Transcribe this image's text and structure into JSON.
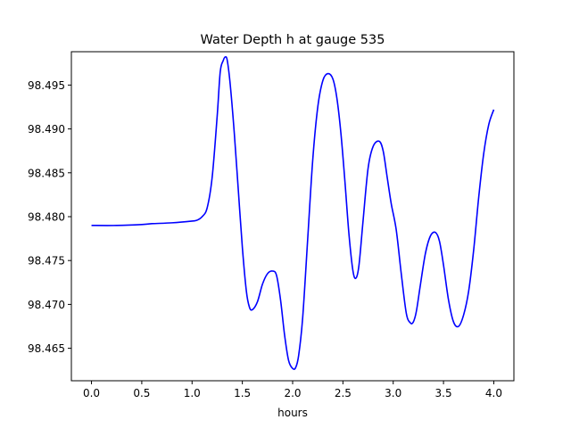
{
  "chart_data": {
    "type": "line",
    "title": "Water Depth h at gauge 535",
    "xlabel": "hours",
    "ylabel": "",
    "xlim": [
      -0.2,
      4.2
    ],
    "ylim": [
      98.4613,
      98.4988
    ],
    "xticks": [
      "0.0",
      "0.5",
      "1.0",
      "1.5",
      "2.0",
      "2.5",
      "3.0",
      "3.5",
      "4.0"
    ],
    "yticks": [
      "98.465",
      "98.470",
      "98.475",
      "98.480",
      "98.485",
      "98.490",
      "98.495"
    ],
    "grid": false,
    "series": [
      {
        "color": "#0000ff",
        "x": [
          0.0,
          0.25,
          0.5,
          0.6,
          0.8,
          1.0,
          1.05,
          1.1,
          1.15,
          1.2,
          1.25,
          1.28,
          1.31,
          1.33,
          1.35,
          1.38,
          1.42,
          1.46,
          1.5,
          1.54,
          1.57,
          1.6,
          1.65,
          1.7,
          1.75,
          1.8,
          1.84,
          1.88,
          1.92,
          1.96,
          2.0,
          2.03,
          2.06,
          2.1,
          2.15,
          2.2,
          2.25,
          2.3,
          2.35,
          2.4,
          2.44,
          2.48,
          2.52,
          2.56,
          2.6,
          2.63,
          2.66,
          2.7,
          2.75,
          2.8,
          2.86,
          2.9,
          2.94,
          2.98,
          3.03,
          3.08,
          3.13,
          3.17,
          3.2,
          3.23,
          3.27,
          3.32,
          3.37,
          3.42,
          3.46,
          3.5,
          3.55,
          3.6,
          3.65,
          3.7,
          3.75,
          3.8,
          3.85,
          3.9,
          3.95,
          4.0
        ],
        "y": [
          98.479,
          98.479,
          98.4791,
          98.4792,
          98.4793,
          98.4795,
          98.4796,
          98.48,
          98.481,
          98.4845,
          98.4915,
          98.4965,
          98.4978,
          98.4982,
          98.4978,
          98.495,
          98.4895,
          98.483,
          98.4765,
          98.4715,
          98.4697,
          98.4694,
          98.4703,
          98.4723,
          98.4735,
          98.4738,
          98.4733,
          98.4705,
          98.4665,
          98.4636,
          98.4627,
          98.4628,
          98.4642,
          98.4685,
          98.4775,
          98.4865,
          98.4925,
          98.4955,
          98.4963,
          98.4957,
          98.4935,
          98.4895,
          98.484,
          98.478,
          98.4738,
          98.473,
          98.4745,
          98.4795,
          98.4855,
          98.488,
          98.4886,
          98.4875,
          98.4845,
          98.4815,
          98.4785,
          98.4735,
          98.469,
          98.4679,
          98.468,
          98.4692,
          98.4722,
          98.4758,
          98.4778,
          98.4782,
          98.4772,
          98.4745,
          98.4705,
          98.468,
          98.4675,
          98.4688,
          98.4715,
          98.4762,
          98.4822,
          98.4872,
          98.4905,
          98.4922
        ]
      }
    ]
  }
}
